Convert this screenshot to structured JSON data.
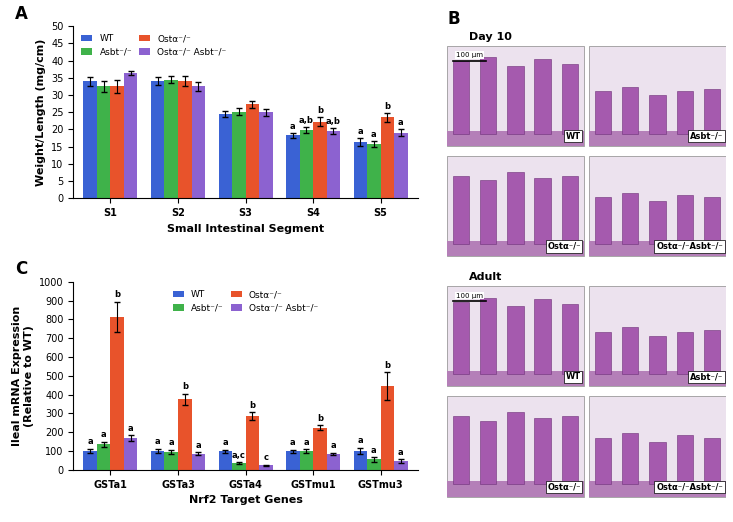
{
  "chart_data": [
    {
      "type": "bar",
      "title": "A",
      "x_label": "Small Intestinal Segment",
      "y_label": "Weight/Length (mg/cm)",
      "categories": [
        "S1",
        "S2",
        "S3",
        "S4",
        "S5"
      ],
      "ylim": [
        0,
        50
      ],
      "yticks": [
        0,
        5,
        10,
        15,
        20,
        25,
        30,
        35,
        40,
        45,
        50
      ],
      "legend": "upper left",
      "series": [
        {
          "name": "WT",
          "color": "#3a62d4",
          "values": [
            34,
            34,
            24.5,
            18.3,
            16.3
          ],
          "errors": [
            1.3,
            1.2,
            0.8,
            0.7,
            1.2
          ],
          "letters": [
            null,
            null,
            null,
            "a",
            "a"
          ]
        },
        {
          "name": "Asbt⁻/⁻",
          "color": "#3fb24a",
          "values": [
            32.5,
            34.5,
            25.2,
            19.8,
            15.8
          ],
          "errors": [
            1.5,
            1.0,
            0.9,
            0.8,
            0.9
          ],
          "letters": [
            null,
            null,
            null,
            "a,b",
            "a"
          ]
        },
        {
          "name": "Ostα⁻/⁻",
          "color": "#e8532b",
          "values": [
            32.5,
            34,
            27.3,
            22.2,
            23.5
          ],
          "errors": [
            1.8,
            1.5,
            1.0,
            1.3,
            1.2
          ],
          "letters": [
            null,
            null,
            null,
            "b",
            "b"
          ]
        },
        {
          "name": "Ostα⁻/⁻ Asbt⁻/⁻",
          "color": "#8c62d0",
          "values": [
            36.5,
            32.5,
            25,
            19.5,
            19
          ],
          "errors": [
            0.6,
            1.3,
            1.0,
            0.9,
            1.0
          ],
          "letters": [
            null,
            null,
            null,
            "a,b",
            "a"
          ]
        }
      ]
    },
    {
      "type": "bar",
      "title": "C",
      "x_label": "Nrf2 Target Genes",
      "y_label": "Ileal mRNA Expression\n(Relative to WT)",
      "categories": [
        "GSTa1",
        "GSTa3",
        "GSTa4",
        "GSTmu1",
        "GSTmu3"
      ],
      "ylim": [
        0,
        1000
      ],
      "yticks": [
        0,
        100,
        200,
        300,
        400,
        500,
        600,
        700,
        800,
        900,
        1000
      ],
      "legend": "upper center",
      "series": [
        {
          "name": "WT",
          "color": "#3a62d4",
          "values": [
            100,
            100,
            100,
            100,
            100
          ],
          "errors": [
            12,
            12,
            8,
            8,
            18
          ],
          "letters": [
            "a",
            "a",
            "a",
            "a",
            "a"
          ]
        },
        {
          "name": "Asbt⁻/⁻",
          "color": "#3fb24a",
          "values": [
            135,
            95,
            35,
            100,
            55
          ],
          "errors": [
            15,
            12,
            4,
            10,
            12
          ],
          "letters": [
            "a",
            "a",
            "a,c",
            "a",
            "a"
          ]
        },
        {
          "name": "Ostα⁻/⁻",
          "color": "#e8532b",
          "values": [
            815,
            375,
            285,
            225,
            445
          ],
          "errors": [
            80,
            30,
            20,
            12,
            75
          ],
          "letters": [
            "b",
            "b",
            "b",
            "b",
            "b"
          ]
        },
        {
          "name": "Ostα⁻/⁻ Asbt⁻/⁻",
          "color": "#8c62d0",
          "values": [
            170,
            85,
            25,
            85,
            45
          ],
          "errors": [
            15,
            8,
            3,
            6,
            10
          ],
          "letters": [
            "a",
            "a",
            "c",
            "a",
            "a"
          ]
        }
      ]
    }
  ],
  "panel_b": {
    "label": "B",
    "sections": [
      {
        "title": "Day 10",
        "scale_bar": "100 μm",
        "images": [
          "WT",
          "Asbt⁻/⁻",
          "Ostα⁻/⁻",
          "Ostα⁻/⁻Asbt⁻/⁻"
        ]
      },
      {
        "title": "Adult",
        "scale_bar": "100 μm",
        "images": [
          "WT",
          "Asbt⁻/⁻",
          "Ostα⁻/⁻",
          "Ostα⁻/⁻Asbt⁻/⁻"
        ]
      }
    ]
  }
}
